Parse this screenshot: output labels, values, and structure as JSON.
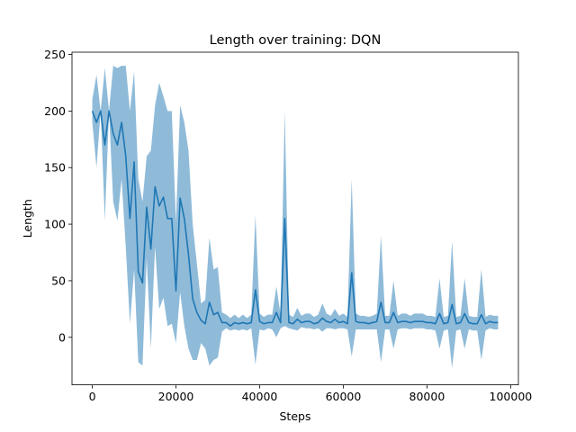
{
  "chart_data": {
    "type": "line",
    "title": "Length over training: DQN",
    "xlabel": "Steps",
    "ylabel": "Length",
    "xlim": [
      -4850,
      101850
    ],
    "ylim": [
      -42,
      252
    ],
    "xticks": [
      0,
      20000,
      40000,
      60000,
      80000,
      100000
    ],
    "xtick_labels": [
      "0",
      "20000",
      "40000",
      "60000",
      "80000",
      "100000"
    ],
    "yticks": [
      0,
      50,
      100,
      150,
      200,
      250
    ],
    "ytick_labels": [
      "0",
      "50",
      "100",
      "150",
      "200",
      "250"
    ],
    "grid": false,
    "legend": "none",
    "colors": {
      "line": "#1f77b4",
      "band": "#1f77b4",
      "band_opacity": 0.5
    },
    "series": [
      {
        "x": [
          0,
          1000,
          2000,
          3000,
          4000,
          5000,
          6000,
          7000,
          8000,
          9000,
          10000,
          11000,
          12000,
          13000,
          14000,
          15000,
          16000,
          17000,
          18000,
          19000,
          20000,
          21000,
          22000,
          23000,
          24000,
          25000,
          26000,
          27000,
          28000,
          29000,
          30000,
          31000,
          32000,
          33000,
          34000,
          35000,
          36000,
          37000,
          38000,
          39000,
          40000,
          41000,
          42000,
          43000,
          44000,
          45000,
          46000,
          47000,
          48000,
          49000,
          50000,
          51000,
          52000,
          53000,
          54000,
          55000,
          56000,
          57000,
          58000,
          59000,
          60000,
          61000,
          62000,
          63000,
          64000,
          65000,
          66000,
          67000,
          68000,
          69000,
          70000,
          71000,
          72000,
          73000,
          74000,
          75000,
          76000,
          77000,
          78000,
          79000,
          80000,
          81000,
          82000,
          83000,
          84000,
          85000,
          86000,
          87000,
          88000,
          89000,
          90000,
          91000,
          92000,
          93000,
          94000,
          95000,
          96000,
          97000
        ],
        "y": [
          200,
          190,
          200,
          170,
          200,
          180,
          170,
          190,
          160,
          105,
          155,
          58,
          48,
          115,
          78,
          133,
          116,
          124,
          105,
          105,
          41,
          123,
          105,
          73,
          34,
          22,
          15,
          12,
          31,
          20,
          22,
          13,
          13,
          10,
          13,
          12,
          13,
          12,
          13,
          42,
          14,
          12,
          13,
          13,
          22,
          13,
          105,
          13,
          12,
          16,
          13,
          14,
          14,
          12,
          13,
          17,
          14,
          13,
          16,
          13,
          14,
          12,
          57,
          14,
          13,
          13,
          12,
          13,
          14,
          31,
          13,
          13,
          22,
          13,
          14,
          14,
          13,
          14,
          14,
          14,
          13,
          13,
          12,
          21,
          12,
          13,
          29,
          12,
          13,
          21,
          13,
          12,
          12,
          20,
          12,
          14,
          13,
          13
        ],
        "lower": [
          190,
          150,
          200,
          103,
          200,
          120,
          103,
          140,
          80,
          12,
          60,
          -22,
          -25,
          70,
          -10,
          80,
          25,
          35,
          10,
          12,
          -5,
          40,
          10,
          -10,
          -20,
          -20,
          -5,
          -10,
          -25,
          -20,
          -18,
          5,
          8,
          6,
          7,
          6,
          7,
          6,
          8,
          -24,
          7,
          6,
          8,
          7,
          0,
          8,
          10,
          8,
          7,
          6,
          9,
          8,
          8,
          7,
          8,
          5,
          8,
          8,
          7,
          8,
          8,
          7,
          -17,
          7,
          7,
          7,
          7,
          7,
          7,
          -22,
          7,
          7,
          -10,
          7,
          8,
          8,
          7,
          8,
          8,
          8,
          7,
          7,
          6,
          -10,
          6,
          7,
          -27,
          6,
          7,
          -10,
          7,
          6,
          6,
          -20,
          6,
          8,
          7,
          7
        ],
        "upper": [
          210,
          232,
          200,
          238,
          200,
          240,
          238,
          240,
          240,
          200,
          235,
          140,
          120,
          160,
          165,
          205,
          225,
          213,
          200,
          200,
          102,
          205,
          190,
          165,
          100,
          65,
          30,
          33,
          88,
          60,
          62,
          22,
          20,
          17,
          20,
          17,
          20,
          17,
          20,
          108,
          21,
          18,
          20,
          20,
          45,
          20,
          200,
          20,
          18,
          26,
          19,
          21,
          21,
          18,
          20,
          30,
          21,
          19,
          25,
          19,
          21,
          18,
          140,
          21,
          19,
          19,
          18,
          19,
          21,
          90,
          19,
          19,
          50,
          19,
          21,
          21,
          19,
          21,
          21,
          21,
          19,
          19,
          18,
          52,
          18,
          19,
          85,
          18,
          19,
          52,
          19,
          18,
          18,
          60,
          18,
          20,
          19,
          19
        ]
      }
    ]
  }
}
